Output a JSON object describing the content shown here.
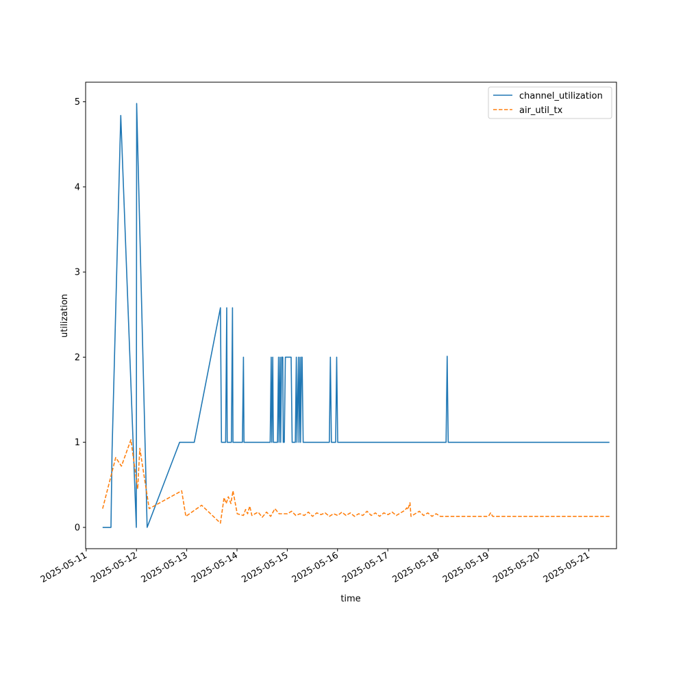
{
  "chart_data": {
    "type": "line",
    "title": "",
    "xlabel": "time",
    "ylabel": "utilization",
    "x_type": "date",
    "xlim": [
      "2025-05-10T23:43",
      "2025-05-21T13:12"
    ],
    "ylim": [
      -0.25,
      5.23
    ],
    "x_ticks": [
      "2025-05-11",
      "2025-05-12",
      "2025-05-13",
      "2025-05-14",
      "2025-05-15",
      "2025-05-16",
      "2025-05-17",
      "2025-05-18",
      "2025-05-19",
      "2025-05-20",
      "2025-05-21"
    ],
    "y_ticks": [
      0,
      1,
      2,
      3,
      4,
      5
    ],
    "grid": false,
    "legend_position": "top-right",
    "series": [
      {
        "name": "channel_utilization",
        "color": "#1f77b4",
        "linestyle": "solid",
        "points": [
          [
            "2025-05-11T07:50",
            0
          ],
          [
            "2025-05-11T11:50",
            0
          ],
          [
            "2025-05-11T12:20",
            0.9
          ],
          [
            "2025-05-11T16:30",
            4.84
          ],
          [
            "2025-05-11T23:55",
            0
          ],
          [
            "2025-05-12T00:05",
            4.98
          ],
          [
            "2025-05-12T05:05",
            0
          ],
          [
            "2025-05-12T20:35",
            1
          ],
          [
            "2025-05-13T03:35",
            1
          ],
          [
            "2025-05-13T16:05",
            2.58
          ],
          [
            "2025-05-13T16:35",
            1
          ],
          [
            "2025-05-13T18:35",
            1
          ],
          [
            "2025-05-13T19:05",
            2.58
          ],
          [
            "2025-05-13T19:20",
            1
          ],
          [
            "2025-05-13T21:20",
            1
          ],
          [
            "2025-05-13T21:50",
            2.58
          ],
          [
            "2025-05-13T22:05",
            1
          ],
          [
            "2025-05-14T02:35",
            1
          ],
          [
            "2025-05-14T03:05",
            2
          ],
          [
            "2025-05-14T03:20",
            1
          ],
          [
            "2025-05-14T15:50",
            1
          ],
          [
            "2025-05-14T16:20",
            2
          ],
          [
            "2025-05-14T16:35",
            1
          ],
          [
            "2025-05-14T17:05",
            2
          ],
          [
            "2025-05-14T17:20",
            1
          ],
          [
            "2025-05-14T19:20",
            1
          ],
          [
            "2025-05-14T19:50",
            2
          ],
          [
            "2025-05-14T20:05",
            1
          ],
          [
            "2025-05-14T20:35",
            2
          ],
          [
            "2025-05-14T20:50",
            1
          ],
          [
            "2025-05-14T21:20",
            2
          ],
          [
            "2025-05-14T21:50",
            2
          ],
          [
            "2025-05-14T22:05",
            1
          ],
          [
            "2025-05-14T22:35",
            1
          ],
          [
            "2025-05-14T23:05",
            2
          ],
          [
            "2025-05-15T01:50",
            2
          ],
          [
            "2025-05-15T02:20",
            1
          ],
          [
            "2025-05-15T03:50",
            1
          ],
          [
            "2025-05-15T04:20",
            2
          ],
          [
            "2025-05-15T04:35",
            1
          ],
          [
            "2025-05-15T05:20",
            2
          ],
          [
            "2025-05-15T05:35",
            1
          ],
          [
            "2025-05-15T06:05",
            2
          ],
          [
            "2025-05-15T06:20",
            1
          ],
          [
            "2025-05-15T06:50",
            2
          ],
          [
            "2025-05-15T07:05",
            2
          ],
          [
            "2025-05-15T07:35",
            1
          ],
          [
            "2025-05-15T20:05",
            1
          ],
          [
            "2025-05-15T20:35",
            2
          ],
          [
            "2025-05-15T21:05",
            1
          ],
          [
            "2025-05-15T23:05",
            1
          ],
          [
            "2025-05-15T23:35",
            2
          ],
          [
            "2025-05-16T00:05",
            1
          ],
          [
            "2025-05-18T03:50",
            1
          ],
          [
            "2025-05-18T04:20",
            2.01
          ],
          [
            "2025-05-18T04:50",
            1
          ],
          [
            "2025-05-21T09:50",
            1
          ]
        ]
      },
      {
        "name": "air_util_tx",
        "color": "#ff7f0e",
        "linestyle": "dashed",
        "points": [
          [
            "2025-05-11T07:50",
            0.22
          ],
          [
            "2025-05-11T14:05",
            0.82
          ],
          [
            "2025-05-11T16:50",
            0.72
          ],
          [
            "2025-05-11T21:20",
            1.03
          ],
          [
            "2025-05-12T00:35",
            0.45
          ],
          [
            "2025-05-12T01:35",
            0.93
          ],
          [
            "2025-05-12T06:05",
            0.22
          ],
          [
            "2025-05-12T21:35",
            0.43
          ],
          [
            "2025-05-12T23:35",
            0.13
          ],
          [
            "2025-05-13T07:05",
            0.26
          ],
          [
            "2025-05-13T16:05",
            0.05
          ],
          [
            "2025-05-13T17:50",
            0.35
          ],
          [
            "2025-05-13T18:50",
            0.28
          ],
          [
            "2025-05-13T19:50",
            0.36
          ],
          [
            "2025-05-13T21:05",
            0.28
          ],
          [
            "2025-05-13T22:05",
            0.43
          ],
          [
            "2025-05-14T00:05",
            0.16
          ],
          [
            "2025-05-14T03:05",
            0.14
          ],
          [
            "2025-05-14T04:05",
            0.21
          ],
          [
            "2025-05-14T05:05",
            0.16
          ],
          [
            "2025-05-14T06:05",
            0.25
          ],
          [
            "2025-05-14T07:05",
            0.14
          ],
          [
            "2025-05-14T10:05",
            0.18
          ],
          [
            "2025-05-14T12:05",
            0.12
          ],
          [
            "2025-05-14T14:05",
            0.18
          ],
          [
            "2025-05-14T16:05",
            0.13
          ],
          [
            "2025-05-14T18:05",
            0.22
          ],
          [
            "2025-05-14T20:05",
            0.16
          ],
          [
            "2025-05-15T00:05",
            0.16
          ],
          [
            "2025-05-15T02:05",
            0.19
          ],
          [
            "2025-05-15T04:05",
            0.14
          ],
          [
            "2025-05-15T06:05",
            0.16
          ],
          [
            "2025-05-15T08:05",
            0.14
          ],
          [
            "2025-05-15T10:05",
            0.18
          ],
          [
            "2025-05-15T12:05",
            0.13
          ],
          [
            "2025-05-15T14:05",
            0.17
          ],
          [
            "2025-05-15T16:05",
            0.15
          ],
          [
            "2025-05-15T18:05",
            0.17
          ],
          [
            "2025-05-15T20:05",
            0.13
          ],
          [
            "2025-05-15T22:05",
            0.16
          ],
          [
            "2025-05-16T00:05",
            0.14
          ],
          [
            "2025-05-16T02:05",
            0.18
          ],
          [
            "2025-05-16T04:05",
            0.14
          ],
          [
            "2025-05-16T06:05",
            0.17
          ],
          [
            "2025-05-16T08:05",
            0.13
          ],
          [
            "2025-05-16T10:05",
            0.16
          ],
          [
            "2025-05-16T12:05",
            0.14
          ],
          [
            "2025-05-16T14:05",
            0.19
          ],
          [
            "2025-05-16T16:05",
            0.14
          ],
          [
            "2025-05-16T18:05",
            0.17
          ],
          [
            "2025-05-16T20:05",
            0.13
          ],
          [
            "2025-05-16T22:05",
            0.17
          ],
          [
            "2025-05-17T00:05",
            0.15
          ],
          [
            "2025-05-17T02:05",
            0.18
          ],
          [
            "2025-05-17T04:05",
            0.14
          ],
          [
            "2025-05-17T06:05",
            0.17
          ],
          [
            "2025-05-17T08:05",
            0.2
          ],
          [
            "2025-05-17T09:05",
            0.23
          ],
          [
            "2025-05-17T09:35",
            0.21
          ],
          [
            "2025-05-17T10:35",
            0.29
          ],
          [
            "2025-05-17T11:05",
            0.13
          ],
          [
            "2025-05-17T13:05",
            0.16
          ],
          [
            "2025-05-17T15:05",
            0.19
          ],
          [
            "2025-05-17T17:05",
            0.14
          ],
          [
            "2025-05-17T19:05",
            0.17
          ],
          [
            "2025-05-17T21:05",
            0.13
          ],
          [
            "2025-05-17T23:05",
            0.16
          ],
          [
            "2025-05-18T01:05",
            0.13
          ],
          [
            "2025-05-19T00:05",
            0.13
          ],
          [
            "2025-05-19T01:05",
            0.17
          ],
          [
            "2025-05-19T02:05",
            0.13
          ],
          [
            "2025-05-21T09:50",
            0.13
          ]
        ]
      }
    ]
  }
}
